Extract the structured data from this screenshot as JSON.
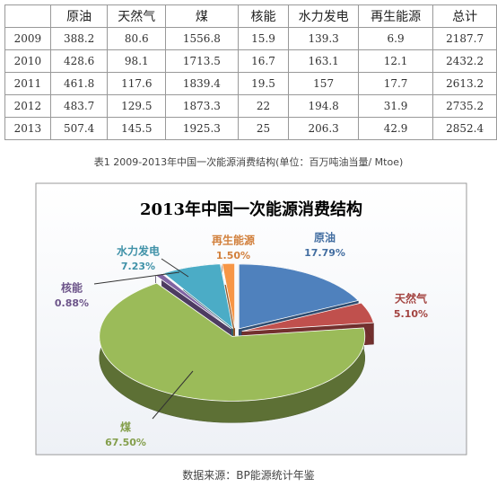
{
  "table": {
    "columns": [
      "原油",
      "天然气",
      "煤",
      "核能",
      "水力发电",
      "再生能源",
      "总计"
    ],
    "rows": [
      {
        "year": "2009",
        "values": [
          388.2,
          80.6,
          1556.8,
          15.9,
          139.3,
          6.9,
          2187.7
        ]
      },
      {
        "year": "2010",
        "values": [
          428.6,
          98.1,
          1713.5,
          16.7,
          163.1,
          12.1,
          2432.2
        ]
      },
      {
        "year": "2011",
        "values": [
          461.8,
          117.6,
          1839.4,
          19.5,
          157,
          17.7,
          2613.2
        ]
      },
      {
        "year": "2012",
        "values": [
          483.7,
          129.5,
          1873.3,
          22,
          194.8,
          31.9,
          2735.2
        ]
      },
      {
        "year": "2013",
        "values": [
          507.4,
          145.5,
          1925.3,
          25,
          206.3,
          42.9,
          2852.4
        ]
      }
    ],
    "caption": "表1 2009-2013年中国一次能源消费结构(单位：百万吨油当量/ Mtoe)"
  },
  "chart_data": {
    "type": "pie",
    "title": "2013年中国一次能源消费结构",
    "categories": [
      "原油",
      "天然气",
      "煤",
      "核能",
      "水力发电",
      "再生能源"
    ],
    "values": [
      17.79,
      5.1,
      67.5,
      0.88,
      7.23,
      1.5
    ],
    "value_labels": [
      "17.79%",
      "5.10%",
      "67.50%",
      "0.88%",
      "7.23%",
      "1.50%"
    ],
    "colors": [
      "#4f81bd",
      "#c0504d",
      "#9bbb59",
      "#8064a2",
      "#4bacc6",
      "#f79646"
    ]
  },
  "source": "数据来源：BP能源统计年鉴"
}
